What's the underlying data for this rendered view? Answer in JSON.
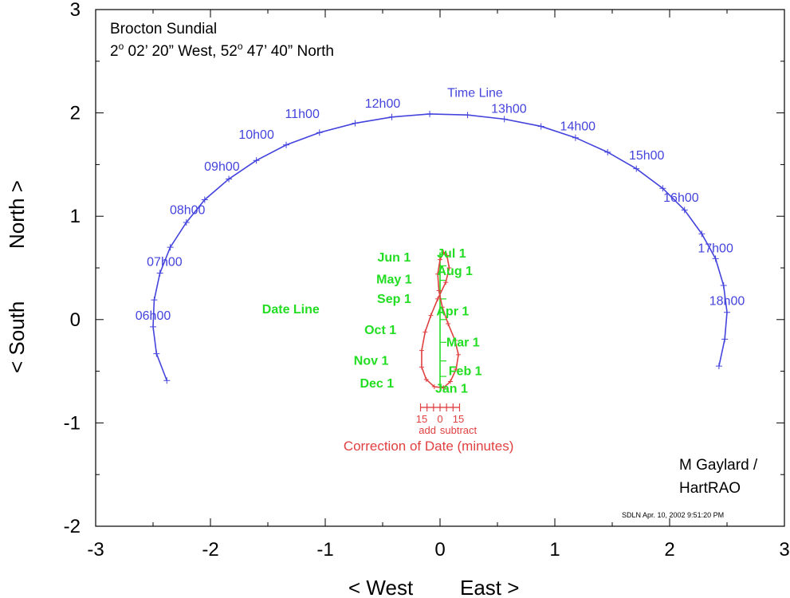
{
  "header": {
    "title": "Brocton Sundial",
    "coords_lon_deg": "2",
    "coords_lon_rest": " 02’ 20” West, 52",
    "coords_lat_rest": " 47’ 40” North",
    "deg_mark": "o"
  },
  "credit": {
    "line1": "M Gaylard /",
    "line2": "HartRAO"
  },
  "stamp": "SDLN  Apr. 10, 2002  9:51:20 PM",
  "colors": {
    "time_line": "#4444dd",
    "date_line": "#22dd22",
    "correction": "#e04040",
    "axis": "#000000"
  },
  "chart_data": {
    "type": "line",
    "xlim": [
      -3,
      3
    ],
    "ylim": [
      -2,
      3
    ],
    "xticks": [
      "-3",
      "-2",
      "-1",
      "0",
      "1",
      "2",
      "3"
    ],
    "yticks": [
      "-2",
      "-1",
      "0",
      "1",
      "2",
      "3"
    ],
    "xlabel_left": "< West",
    "xlabel_right": "East >",
    "ylabel_left": "< South",
    "ylabel_right": "North >",
    "grid": false,
    "time_line": {
      "name": "Time Line",
      "points": [
        [
          -2.38,
          -0.59
        ],
        [
          -2.47,
          -0.33
        ],
        [
          -2.5,
          -0.07
        ],
        [
          -2.49,
          0.19
        ],
        [
          -2.44,
          0.45
        ],
        [
          -2.35,
          0.7
        ],
        [
          -2.21,
          0.94
        ],
        [
          -2.05,
          1.16
        ],
        [
          -1.84,
          1.36
        ],
        [
          -1.6,
          1.54
        ],
        [
          -1.34,
          1.69
        ],
        [
          -1.05,
          1.81
        ],
        [
          -0.74,
          1.9
        ],
        [
          -0.42,
          1.96
        ],
        [
          -0.09,
          1.99
        ],
        [
          0.24,
          1.98
        ],
        [
          0.56,
          1.94
        ],
        [
          0.88,
          1.87
        ],
        [
          1.18,
          1.76
        ],
        [
          1.46,
          1.62
        ],
        [
          1.71,
          1.46
        ],
        [
          1.94,
          1.27
        ],
        [
          2.13,
          1.06
        ],
        [
          2.28,
          0.83
        ],
        [
          2.4,
          0.59
        ],
        [
          2.47,
          0.33
        ],
        [
          2.5,
          0.07
        ],
        [
          2.48,
          -0.19
        ],
        [
          2.43,
          -0.45
        ]
      ],
      "hour_labels": [
        {
          "text": "06h00",
          "x": -2.5,
          "y": 0.0
        },
        {
          "text": "07h00",
          "x": -2.4,
          "y": 0.52
        },
        {
          "text": "08h00",
          "x": -2.2,
          "y": 1.02
        },
        {
          "text": "09h00",
          "x": -1.9,
          "y": 1.44
        },
        {
          "text": "10h00",
          "x": -1.6,
          "y": 1.75
        },
        {
          "text": "11h00",
          "x": -1.2,
          "y": 1.95
        },
        {
          "text": "12h00",
          "x": -0.5,
          "y": 2.05
        },
        {
          "text": "13h00",
          "x": 0.6,
          "y": 2.0
        },
        {
          "text": "14h00",
          "x": 1.2,
          "y": 1.83
        },
        {
          "text": "15h00",
          "x": 1.8,
          "y": 1.55
        },
        {
          "text": "16h00",
          "x": 2.1,
          "y": 1.14
        },
        {
          "text": "17h00",
          "x": 2.4,
          "y": 0.65
        },
        {
          "text": "18h00",
          "x": 2.5,
          "y": 0.14
        }
      ],
      "label": {
        "text": "Time Line",
        "x": 0.0,
        "y": 2.2
      }
    },
    "date_line": {
      "name": "Date Line",
      "x": 0,
      "y_range": [
        -0.65,
        0.65
      ],
      "label": {
        "text": "Date Line",
        "x": -1.3,
        "y": 0.06
      },
      "ticks_y": [
        -0.65,
        -0.55,
        -0.4,
        -0.22,
        0.0,
        0.2,
        0.38,
        0.52,
        0.63
      ]
    },
    "analemma": {
      "name": "Correction of Date",
      "points": [
        [
          0.03,
          -0.66
        ],
        [
          0.09,
          -0.6
        ],
        [
          0.14,
          -0.48
        ],
        [
          0.16,
          -0.34
        ],
        [
          0.13,
          -0.2
        ],
        [
          0.07,
          -0.04
        ],
        [
          0.02,
          0.12
        ],
        [
          -0.01,
          0.28
        ],
        [
          -0.02,
          0.44
        ],
        [
          0.0,
          0.58
        ],
        [
          0.03,
          0.65
        ],
        [
          0.06,
          0.62
        ],
        [
          0.08,
          0.5
        ],
        [
          0.05,
          0.36
        ],
        [
          -0.02,
          0.2
        ],
        [
          -0.08,
          0.04
        ],
        [
          -0.13,
          -0.12
        ],
        [
          -0.16,
          -0.3
        ],
        [
          -0.16,
          -0.46
        ],
        [
          -0.12,
          -0.58
        ],
        [
          -0.05,
          -0.65
        ],
        [
          0.03,
          -0.66
        ]
      ],
      "month_labels": [
        {
          "text": "Jun 1",
          "x": -0.4,
          "y": 0.6
        },
        {
          "text": "Jul 1",
          "x": 0.1,
          "y": 0.64
        },
        {
          "text": "May 1",
          "x": -0.4,
          "y": 0.39
        },
        {
          "text": "Aug 1",
          "x": 0.13,
          "y": 0.47
        },
        {
          "text": "Sep 1",
          "x": -0.4,
          "y": 0.2
        },
        {
          "text": "Apr 1",
          "x": 0.11,
          "y": 0.08
        },
        {
          "text": "Oct 1",
          "x": -0.52,
          "y": -0.1
        },
        {
          "text": "Mar 1",
          "x": 0.2,
          "y": -0.22
        },
        {
          "text": "Nov 1",
          "x": -0.6,
          "y": -0.4
        },
        {
          "text": "Feb 1",
          "x": 0.22,
          "y": -0.5
        },
        {
          "text": "Dec 1",
          "x": -0.55,
          "y": -0.62
        },
        {
          "text": "Jan 1",
          "x": 0.1,
          "y": -0.67
        }
      ]
    },
    "correction_scale": {
      "y": -0.85,
      "x_range": [
        -0.17,
        0.17
      ],
      "tick_count": 7,
      "labels": [
        {
          "text": "15",
          "x": -0.16
        },
        {
          "text": "0",
          "x": 0.0
        },
        {
          "text": "15",
          "x": 0.16
        }
      ],
      "add_label": "add",
      "subtract_label": "subtract",
      "title": "Correction of Date (minutes)"
    }
  }
}
